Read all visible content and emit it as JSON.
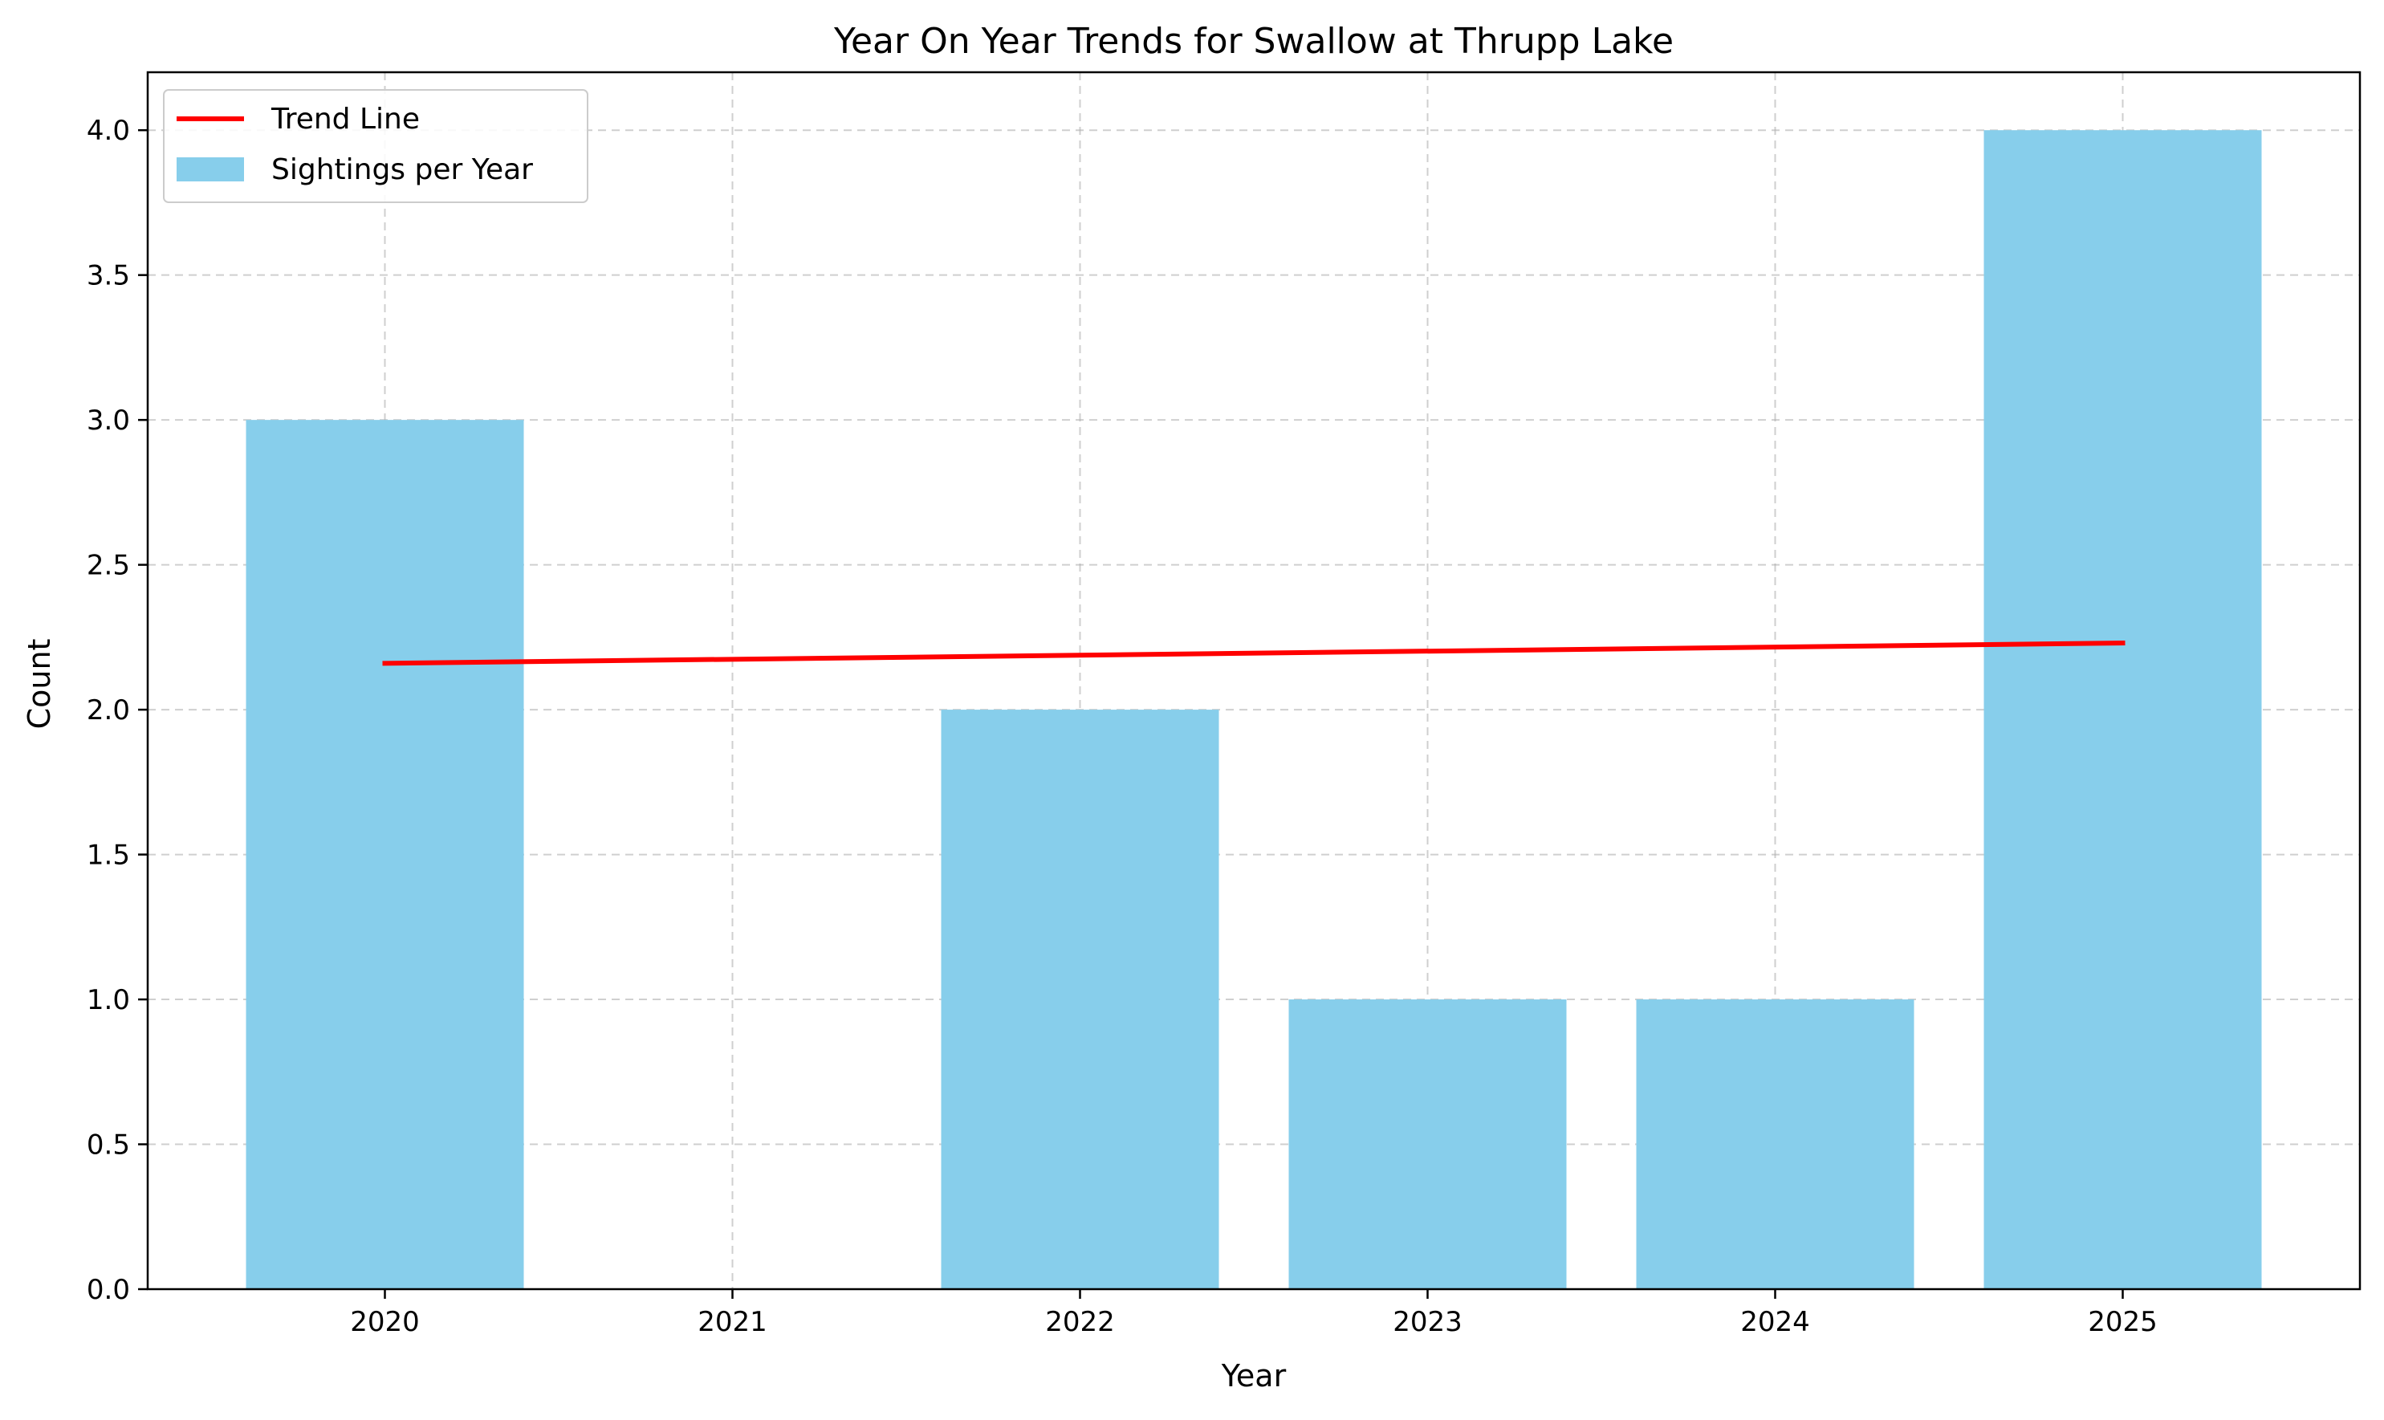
{
  "chart_data": {
    "type": "bar",
    "title": "Year On Year Trends for Swallow at Thrupp Lake",
    "xlabel": "Year",
    "ylabel": "Count",
    "categories": [
      "2020",
      "2021",
      "2022",
      "2023",
      "2024",
      "2025"
    ],
    "series": [
      {
        "name": "Sightings per Year",
        "type": "bar",
        "values": [
          3,
          0,
          2,
          1,
          1,
          4
        ],
        "color": "#87ceeb"
      },
      {
        "name": "Trend Line",
        "type": "line",
        "x": [
          "2020",
          "2025"
        ],
        "values": [
          2.16,
          2.23
        ],
        "color": "#ff0000"
      }
    ],
    "ylim": [
      0,
      4.2
    ],
    "yticks": [
      "0.0",
      "0.5",
      "1.0",
      "1.5",
      "2.0",
      "2.5",
      "3.0",
      "3.5",
      "4.0"
    ],
    "grid": true,
    "legend_position": "top-left"
  }
}
